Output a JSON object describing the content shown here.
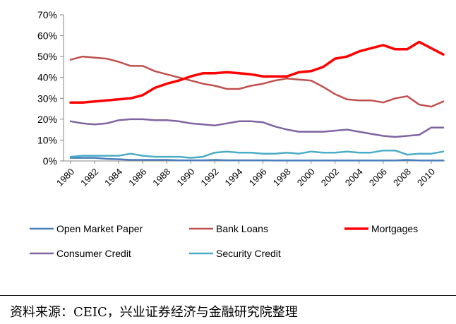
{
  "chart_data": {
    "type": "line",
    "title": "",
    "xlabel": "",
    "ylabel": "",
    "x": [
      1980,
      1981,
      1982,
      1983,
      1984,
      1985,
      1986,
      1987,
      1988,
      1989,
      1990,
      1991,
      1992,
      1993,
      1994,
      1995,
      1996,
      1997,
      1998,
      1999,
      2000,
      2001,
      2002,
      2003,
      2004,
      2005,
      2006,
      2007,
      2008,
      2009,
      2010,
      2011
    ],
    "x_tick_labels": [
      "1980",
      "1982",
      "1984",
      "1986",
      "1988",
      "1990",
      "1992",
      "1994",
      "1996",
      "1998",
      "2000",
      "2002",
      "2004",
      "2006",
      "2008",
      "2010"
    ],
    "y_tick_labels": [
      "0%",
      "10%",
      "20%",
      "30%",
      "40%",
      "50%",
      "60%",
      "70%"
    ],
    "ylim": [
      0,
      70
    ],
    "grid": false,
    "legend_position": "bottom",
    "series": [
      {
        "name": "Open Market Paper",
        "color": "#4a7ebb",
        "width": 2.5,
        "values": [
          1.5,
          1.5,
          1.5,
          1.0,
          0.8,
          0.5,
          0.5,
          0.5,
          0.5,
          0.3,
          0.3,
          0.3,
          0.5,
          0.3,
          0.3,
          0.3,
          0.3,
          0.2,
          0.2,
          0.2,
          0.2,
          0.2,
          0.2,
          0.2,
          0.2,
          0.2,
          0.2,
          0.2,
          0.5,
          0.2,
          0.2,
          0.2
        ]
      },
      {
        "name": "Bank Loans",
        "color": "#c0504d",
        "width": 2.5,
        "values": [
          48.5,
          50.0,
          49.5,
          49.0,
          47.5,
          45.5,
          45.5,
          43.0,
          41.5,
          40.0,
          38.5,
          37.0,
          36.0,
          34.5,
          34.5,
          36.0,
          37.0,
          38.5,
          39.5,
          39.0,
          38.5,
          35.5,
          32.0,
          29.5,
          29.0,
          29.0,
          28.0,
          30.0,
          31.0,
          27.0,
          26.0,
          28.5
        ]
      },
      {
        "name": "Mortgages",
        "color": "#ff0000",
        "width": 3.5,
        "values": [
          28.0,
          28.0,
          28.5,
          29.0,
          29.5,
          30.0,
          31.5,
          35.0,
          37.0,
          38.5,
          40.5,
          42.0,
          42.0,
          42.5,
          42.0,
          41.5,
          40.5,
          40.5,
          40.5,
          42.5,
          43.0,
          45.0,
          49.0,
          50.0,
          52.5,
          54.0,
          55.5,
          53.5,
          53.5,
          57.0,
          54.0,
          51.0
        ]
      },
      {
        "name": "Consumer Credit",
        "color": "#8064a2",
        "width": 2.5,
        "values": [
          19.0,
          18.0,
          17.5,
          18.0,
          19.5,
          20.0,
          20.0,
          19.5,
          19.5,
          19.0,
          18.0,
          17.5,
          17.0,
          18.0,
          19.0,
          19.0,
          18.5,
          16.5,
          15.0,
          14.0,
          14.0,
          14.0,
          14.5,
          15.0,
          14.0,
          13.0,
          12.0,
          11.5,
          12.0,
          12.5,
          16.0,
          16.0
        ]
      },
      {
        "name": "Security Credit",
        "color": "#4bacc6",
        "width": 2.5,
        "values": [
          2.0,
          2.5,
          2.5,
          2.5,
          2.5,
          3.5,
          2.5,
          2.0,
          2.0,
          2.0,
          1.5,
          2.0,
          4.0,
          4.5,
          4.0,
          4.0,
          3.5,
          3.5,
          4.0,
          3.5,
          4.5,
          4.0,
          4.0,
          4.5,
          4.0,
          4.0,
          5.0,
          5.0,
          3.0,
          3.5,
          3.5,
          4.5
        ]
      }
    ]
  },
  "source_note": "资料来源：CEIC，兴业证券经济与金融研究院整理"
}
